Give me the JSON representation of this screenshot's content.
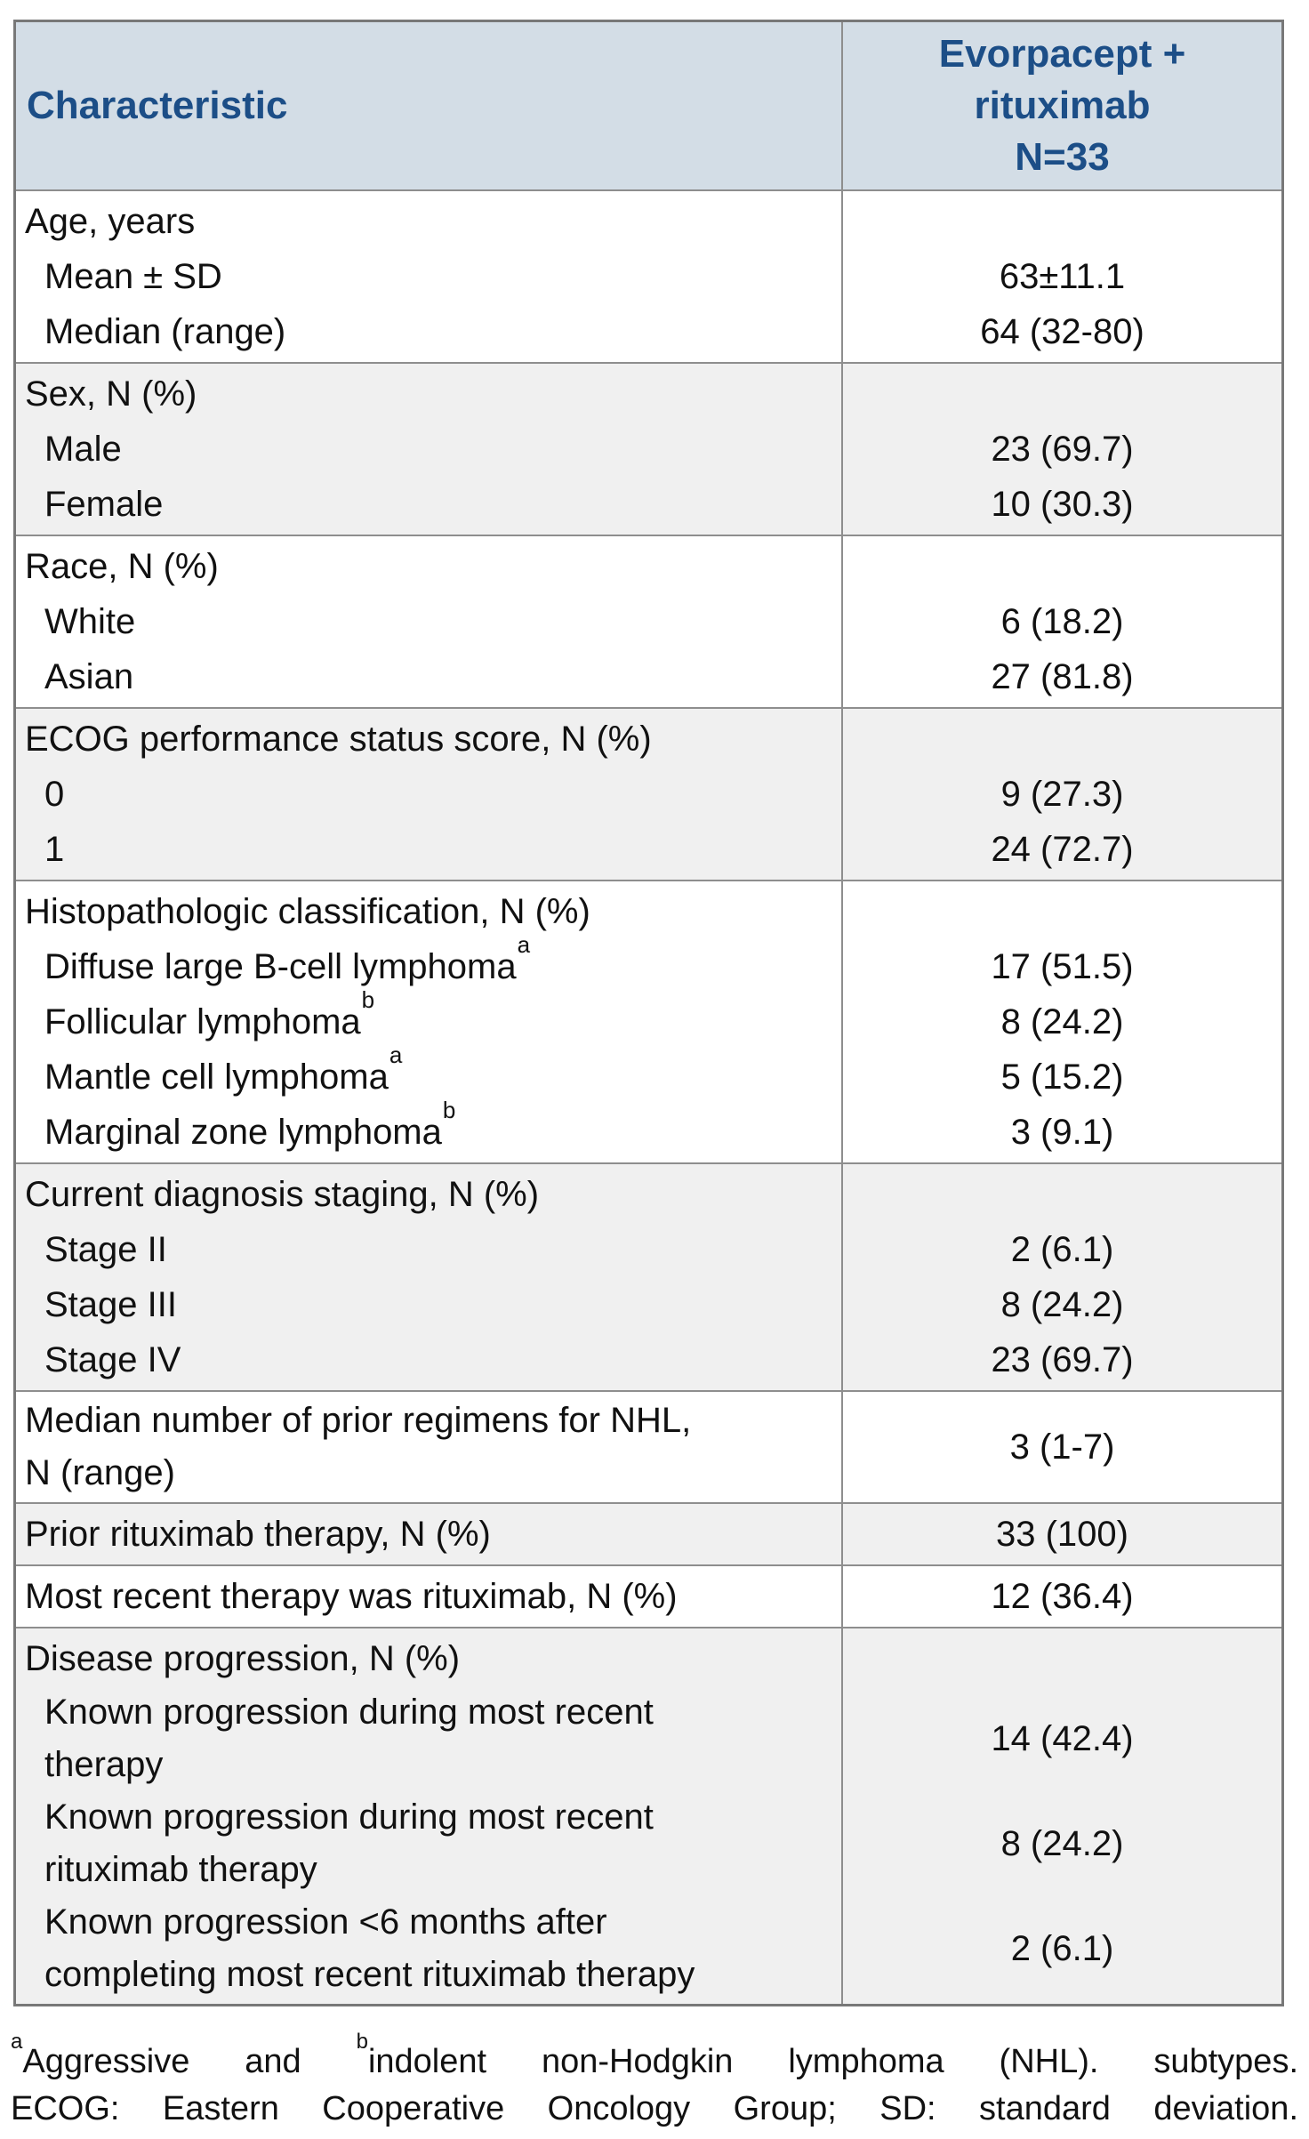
{
  "colors": {
    "header_bg": "#d3dde6",
    "header_text": "#1c4e87",
    "row_alt_bg": "#f0f0f0",
    "row_bg": "#ffffff",
    "border": "#8e8e8e",
    "body_text": "#111111"
  },
  "table": {
    "header": {
      "col1": "Characteristic",
      "col2_lines": [
        "Evorpacept +",
        "rituximab",
        "N=33"
      ]
    },
    "sections": [
      {
        "label": "Age, years",
        "rows": [
          {
            "text": "Mean ± SD",
            "value": "63±11.1"
          },
          {
            "text": "Median (range)",
            "value": "64 (32-80)"
          }
        ]
      },
      {
        "label": "Sex, N (%)",
        "rows": [
          {
            "text": "Male",
            "value": "23 (69.7)"
          },
          {
            "text": "Female",
            "value": "10 (30.3)"
          }
        ]
      },
      {
        "label": "Race, N (%)",
        "rows": [
          {
            "text": "White",
            "value": "6 (18.2)"
          },
          {
            "text": "Asian",
            "value": "27 (81.8)"
          }
        ]
      },
      {
        "label": "ECOG performance status score, N (%)",
        "rows": [
          {
            "text": "0",
            "value": "9 (27.3)"
          },
          {
            "text": "1",
            "value": "24 (72.7)"
          }
        ]
      },
      {
        "label": "Histopathologic classification, N (%)",
        "rows": [
          {
            "text": "Diffuse large B-cell lymphoma",
            "sup": "a",
            "value": "17 (51.5)"
          },
          {
            "text": "Follicular lymphoma",
            "sup": "b",
            "value": "8 (24.2)"
          },
          {
            "text": "Mantle cell lymphoma",
            "sup": "a",
            "value": "5 (15.2)"
          },
          {
            "text": "Marginal zone lymphoma",
            "sup": "b",
            "value": "3 (9.1)"
          }
        ]
      },
      {
        "label": "Current diagnosis staging, N (%)",
        "rows": [
          {
            "text": "Stage II",
            "value": "2 (6.1)"
          },
          {
            "text": "Stage III",
            "value": "8 (24.2)"
          },
          {
            "text": "Stage IV",
            "value": "23 (69.7)"
          }
        ]
      },
      {
        "label": "Median number of prior regimens for NHL, N (range)",
        "value": "3 (1-7)"
      },
      {
        "label": "Prior rituximab therapy, N (%)",
        "value": "33 (100)"
      },
      {
        "label": "Most recent therapy was rituximab, N (%)",
        "value": "12 (36.4)"
      },
      {
        "label": "Disease progression, N (%)",
        "rows": [
          {
            "text": "Known progression during most recent therapy",
            "value": "14 (42.4)"
          },
          {
            "text": "Known progression during most recent rituximab therapy",
            "value": "8 (24.2)"
          },
          {
            "text": "Known progression <6 months after completing most recent rituximab therapy",
            "value": "2 (6.1)"
          }
        ]
      }
    ]
  },
  "footnotes": {
    "line1": {
      "sup_a": "a",
      "part1": "Aggressive and ",
      "sup_b": "b",
      "part2": "indolent non-Hodgkin lymphoma (NHL). subtypes."
    },
    "line2": "ECOG: Eastern Cooperative Oncology Group; SD: standard deviation."
  }
}
